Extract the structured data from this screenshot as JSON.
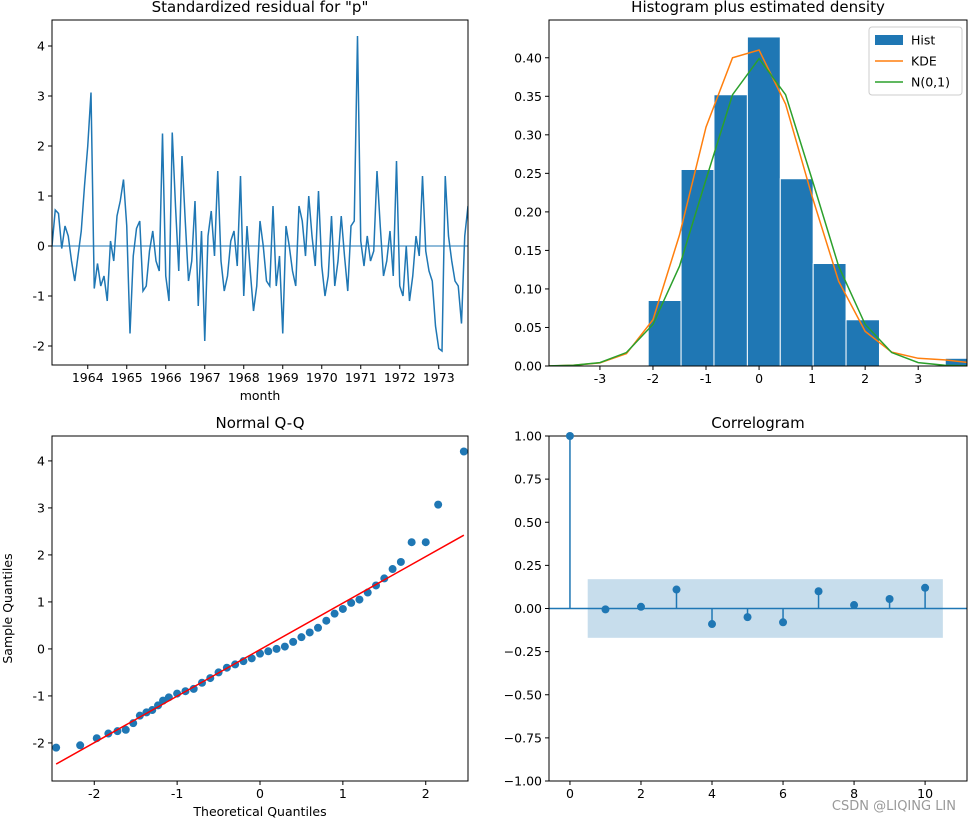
{
  "chart_data": [
    {
      "type": "line",
      "title": "Standardized residual for \"p\"",
      "xlabel": "month",
      "categories": [
        null,
        null,
        null,
        null,
        null,
        null,
        null,
        null,
        null,
        null,
        null,
        "1964",
        null,
        null,
        null,
        null,
        null,
        null,
        null,
        null,
        null,
        null,
        null,
        "1965",
        null,
        null,
        null,
        null,
        null,
        null,
        null,
        null,
        null,
        null,
        null,
        "1966",
        null,
        null,
        null,
        null,
        null,
        null,
        null,
        null,
        null,
        null,
        null,
        "1967",
        null,
        null,
        null,
        null,
        null,
        null,
        null,
        null,
        null,
        null,
        null,
        "1968",
        null,
        null,
        null,
        null,
        null,
        null,
        null,
        null,
        null,
        null,
        null,
        "1969",
        null,
        null,
        null,
        null,
        null,
        null,
        null,
        null,
        null,
        null,
        null,
        "1970",
        null,
        null,
        null,
        null,
        null,
        null,
        null,
        null,
        null,
        null,
        null,
        "1971",
        null,
        null,
        null,
        null,
        null,
        null,
        null,
        null,
        null,
        null,
        null,
        "1972",
        null,
        null,
        null,
        null,
        null,
        null,
        null,
        null,
        null,
        null,
        null,
        "1973",
        null,
        null,
        null,
        null,
        null,
        null,
        null,
        null,
        null
      ],
      "series": [
        {
          "color": "#1f77b4",
          "values": [
            0.0,
            0.72,
            0.65,
            -0.05,
            0.4,
            0.2,
            -0.3,
            -0.7,
            -0.2,
            0.3,
            1.2,
            2.0,
            3.07,
            -0.85,
            -0.35,
            -0.8,
            -0.6,
            -1.1,
            0.1,
            -0.3,
            0.6,
            0.9,
            1.33,
            0.4,
            -1.75,
            -0.2,
            0.35,
            0.5,
            -0.9,
            -0.8,
            -0.1,
            0.3,
            -0.3,
            -0.5,
            2.25,
            -0.6,
            -1.1,
            2.27,
            0.8,
            -0.5,
            1.8,
            0.5,
            -0.7,
            -0.3,
            0.9,
            -1.2,
            0.3,
            -1.9,
            0.2,
            0.7,
            -0.2,
            1.5,
            -0.3,
            -0.9,
            -0.6,
            0.1,
            0.3,
            -0.4,
            1.4,
            -1.0,
            0.4,
            -0.5,
            -1.3,
            -0.8,
            0.5,
            0.0,
            -0.7,
            -0.8,
            0.8,
            -0.8,
            -0.2,
            -1.75,
            0.4,
            0.0,
            -0.5,
            -0.8,
            0.8,
            0.5,
            -0.2,
            1.0,
            0.2,
            -0.4,
            1.1,
            -0.4,
            -1.0,
            -0.6,
            0.6,
            -0.8,
            -0.3,
            0.6,
            -0.2,
            -0.9,
            0.4,
            0.5,
            4.2,
            0.1,
            -0.4,
            0.2,
            -0.3,
            -0.1,
            1.5,
            0.4,
            -0.6,
            -0.3,
            0.3,
            -0.6,
            1.7,
            -0.8,
            -1.0,
            0.0,
            -1.1,
            -0.6,
            0.2,
            -0.2,
            1.4,
            -0.1,
            -0.5,
            -0.7,
            -1.6,
            -2.05,
            -2.1,
            1.4,
            0.2,
            -0.3,
            -0.7,
            -0.8,
            -1.55,
            0.2,
            0.8
          ]
        }
      ],
      "hline": 0,
      "ylim": [
        -2.38,
        4.52
      ],
      "yticks": [
        -2,
        -1,
        0,
        1,
        2,
        3,
        4
      ]
    },
    {
      "type": "histogram",
      "title": "Histogram plus estimated density",
      "name": "Hist",
      "color": "#1f77b4",
      "bins": [
        -2.09,
        -1.47,
        -0.85,
        -0.22,
        0.4,
        1.02,
        1.64,
        2.27,
        2.89,
        3.51,
        4.13
      ],
      "values": [
        0.085,
        0.255,
        0.352,
        0.427,
        0.243,
        0.133,
        0.06,
        0,
        0,
        0.01
      ],
      "lines": [
        {
          "name": "KDE",
          "color": "#ff7f0e",
          "x": [
            -4,
            -3.5,
            -3,
            -2.5,
            -2,
            -1.5,
            -1,
            -0.5,
            0,
            0.5,
            1,
            1.5,
            2,
            2.5,
            3,
            3.5,
            4
          ],
          "values": [
            0.0,
            0.001,
            0.004,
            0.016,
            0.06,
            0.17,
            0.31,
            0.4,
            0.41,
            0.34,
            0.22,
            0.11,
            0.045,
            0.018,
            0.01,
            0.008,
            0.004
          ]
        },
        {
          "name": "N(0,1)",
          "color": "#2ca02c",
          "x": [
            -4,
            -3.5,
            -3,
            -2.5,
            -2,
            -1.5,
            -1,
            -0.5,
            0,
            0.5,
            1,
            1.5,
            2,
            2.5,
            3,
            3.5,
            4
          ],
          "values": [
            0.0001,
            0.0009,
            0.0044,
            0.0175,
            0.054,
            0.1295,
            0.242,
            0.3521,
            0.3989,
            0.3521,
            0.242,
            0.1295,
            0.054,
            0.0175,
            0.0044,
            0.0009,
            0.0001
          ]
        }
      ],
      "legend": "upper right",
      "xlim": [
        -3.96,
        3.92
      ],
      "xticks": [
        -3,
        -2,
        -1,
        0,
        1,
        2,
        3
      ],
      "ylim": [
        0,
        0.449
      ],
      "yticks": [
        {
          "value": 0,
          "label": "0.00"
        },
        {
          "value": 0.05,
          "label": "0.05"
        },
        {
          "value": 0.1,
          "label": "0.10"
        },
        {
          "value": 0.15,
          "label": "0.15"
        },
        {
          "value": 0.2,
          "label": "0.20"
        },
        {
          "value": 0.25,
          "label": "0.25"
        },
        {
          "value": 0.3,
          "label": "0.30"
        },
        {
          "value": 0.35,
          "label": "0.35"
        },
        {
          "value": 0.4,
          "label": "0.40"
        }
      ]
    },
    {
      "type": "scatter",
      "title": "Normal Q-Q",
      "xlabel": "Theoretical Quantiles",
      "ylabel": "Sample Quantiles",
      "color": "#1f77b4",
      "x": [
        -2.46,
        -2.17,
        -1.97,
        -1.83,
        -1.72,
        -1.62,
        -1.53,
        -1.45,
        -1.37,
        -1.3,
        -1.23,
        -1.17,
        -1.1,
        -1.0,
        -0.9,
        -0.8,
        -0.7,
        -0.6,
        -0.5,
        -0.4,
        -0.3,
        -0.2,
        -0.1,
        0,
        0.1,
        0.2,
        0.3,
        0.4,
        0.5,
        0.6,
        0.7,
        0.8,
        0.9,
        1.0,
        1.1,
        1.2,
        1.3,
        1.4,
        1.5,
        1.6,
        1.7,
        1.83,
        2.0,
        2.15,
        2.46
      ],
      "values": [
        -2.1,
        -2.05,
        -1.9,
        -1.8,
        -1.75,
        -1.72,
        -1.58,
        -1.42,
        -1.35,
        -1.3,
        -1.2,
        -1.1,
        -1.03,
        -0.95,
        -0.9,
        -0.85,
        -0.72,
        -0.62,
        -0.5,
        -0.4,
        -0.33,
        -0.26,
        -0.2,
        -0.1,
        -0.05,
        0.0,
        0.05,
        0.15,
        0.25,
        0.35,
        0.45,
        0.6,
        0.75,
        0.85,
        0.98,
        1.05,
        1.2,
        1.35,
        1.5,
        1.7,
        1.85,
        2.27,
        2.27,
        3.07,
        4.2
      ],
      "lines": [
        {
          "color": "#ff0000",
          "x": [
            -2.46,
            2.46
          ],
          "values": [
            -2.45,
            2.42
          ]
        }
      ],
      "xlim": [
        -2.51,
        2.51
      ],
      "xticks": [
        -2,
        -1,
        0,
        1,
        2
      ],
      "ylim": [
        -2.81,
        4.53
      ],
      "yticks": [
        -2,
        -1,
        0,
        1,
        2,
        3,
        4
      ]
    },
    {
      "type": "stem",
      "title": "Correlogram",
      "color": "#1f77b4",
      "x": [
        0,
        1,
        2,
        3,
        4,
        5,
        6,
        7,
        8,
        9,
        10
      ],
      "values": [
        1.0,
        -0.005,
        0.01,
        0.11,
        -0.09,
        -0.05,
        -0.08,
        0.1,
        0.02,
        0.055,
        0.12
      ],
      "confint": 0.17,
      "band_x": [
        0.5,
        10.5
      ],
      "hline": 0,
      "xlim": [
        -0.59,
        11.18
      ],
      "xticks": [
        0,
        2,
        4,
        6,
        8,
        10
      ],
      "ylim": [
        -1,
        1
      ],
      "yticks": [
        {
          "value": -1,
          "label": "−1.00"
        },
        {
          "value": -0.75,
          "label": "−0.75"
        },
        {
          "value": -0.5,
          "label": "−0.50"
        },
        {
          "value": -0.25,
          "label": "−0.25"
        },
        {
          "value": 0,
          "label": "0.00"
        },
        {
          "value": 0.25,
          "label": "0.25"
        },
        {
          "value": 0.5,
          "label": "0.50"
        },
        {
          "value": 0.75,
          "label": "0.75"
        },
        {
          "value": 1,
          "label": "1.00"
        }
      ]
    }
  ],
  "watermark": "CSDN @LIQING LIN"
}
